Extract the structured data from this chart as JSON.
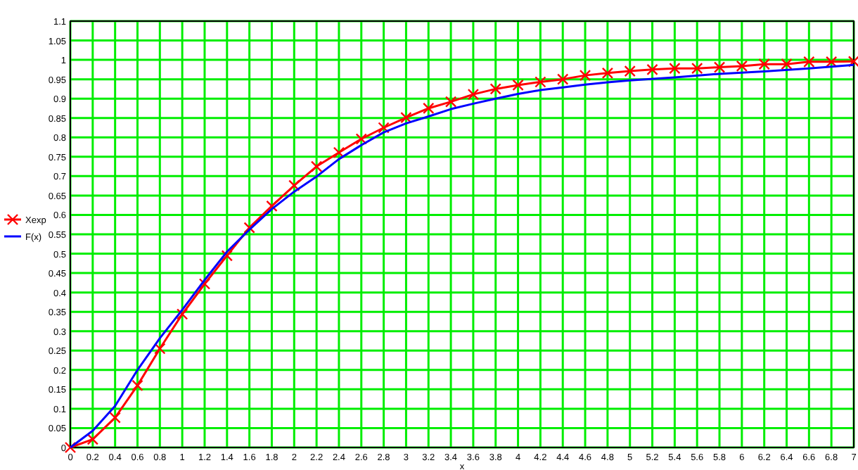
{
  "chart_data": {
    "type": "line",
    "xlabel": "x",
    "xlim": [
      0,
      7
    ],
    "xticks": [
      0,
      0.2,
      0.4,
      0.6,
      0.8,
      1,
      1.2,
      1.4,
      1.6,
      1.8,
      2,
      2.2,
      2.4,
      2.6,
      2.8,
      3,
      3.2,
      3.4,
      3.6,
      3.8,
      4,
      4.2,
      4.4,
      4.6,
      4.8,
      5,
      5.2,
      5.4,
      5.6,
      5.8,
      6,
      6.2,
      6.4,
      6.6,
      6.8,
      7
    ],
    "ylim": [
      0,
      1.1
    ],
    "yticks": [
      0,
      0.05,
      0.1,
      0.15,
      0.2,
      0.25,
      0.3,
      0.35,
      0.4,
      0.45,
      0.5,
      0.55,
      0.6,
      0.65,
      0.7,
      0.75,
      0.8,
      0.85,
      0.9,
      0.95,
      1,
      1.05,
      1.1
    ],
    "grid": true,
    "legend": "left",
    "series": [
      {
        "name": "Xexp",
        "color": "#ff0000",
        "marker": "cross",
        "x": [
          0,
          0.2,
          0.4,
          0.6,
          0.8,
          1,
          1.2,
          1.4,
          1.6,
          1.8,
          2,
          2.2,
          2.4,
          2.6,
          2.8,
          3,
          3.2,
          3.4,
          3.6,
          3.8,
          4,
          4.2,
          4.4,
          4.6,
          4.8,
          5,
          5.2,
          5.4,
          5.6,
          5.8,
          6,
          6.2,
          6.4,
          6.6,
          6.8,
          7
        ],
        "values": [
          0,
          0.021,
          0.077,
          0.16,
          0.255,
          0.344,
          0.422,
          0.495,
          0.567,
          0.623,
          0.676,
          0.725,
          0.761,
          0.796,
          0.825,
          0.851,
          0.875,
          0.892,
          0.911,
          0.925,
          0.935,
          0.943,
          0.95,
          0.96,
          0.966,
          0.971,
          0.975,
          0.978,
          0.978,
          0.981,
          0.984,
          0.989,
          0.989,
          0.995,
          0.995,
          0.996
        ]
      },
      {
        "name": "F(x)",
        "color": "#0000ff",
        "marker": "none",
        "x": [
          0,
          0.2,
          0.4,
          0.6,
          0.8,
          1,
          1.2,
          1.4,
          1.6,
          1.8,
          2,
          2.2,
          2.4,
          2.6,
          2.8,
          3,
          3.2,
          3.4,
          3.6,
          3.8,
          4,
          4.2,
          4.4,
          4.6,
          4.8,
          5,
          5.4,
          5.8,
          6.2,
          6.6,
          7
        ],
        "values": [
          0,
          0.043,
          0.107,
          0.2,
          0.282,
          0.355,
          0.432,
          0.505,
          0.562,
          0.615,
          0.66,
          0.699,
          0.744,
          0.78,
          0.813,
          0.836,
          0.854,
          0.873,
          0.887,
          0.9,
          0.912,
          0.922,
          0.929,
          0.936,
          0.942,
          0.947,
          0.955,
          0.964,
          0.97,
          0.978,
          0.987
        ]
      }
    ]
  }
}
